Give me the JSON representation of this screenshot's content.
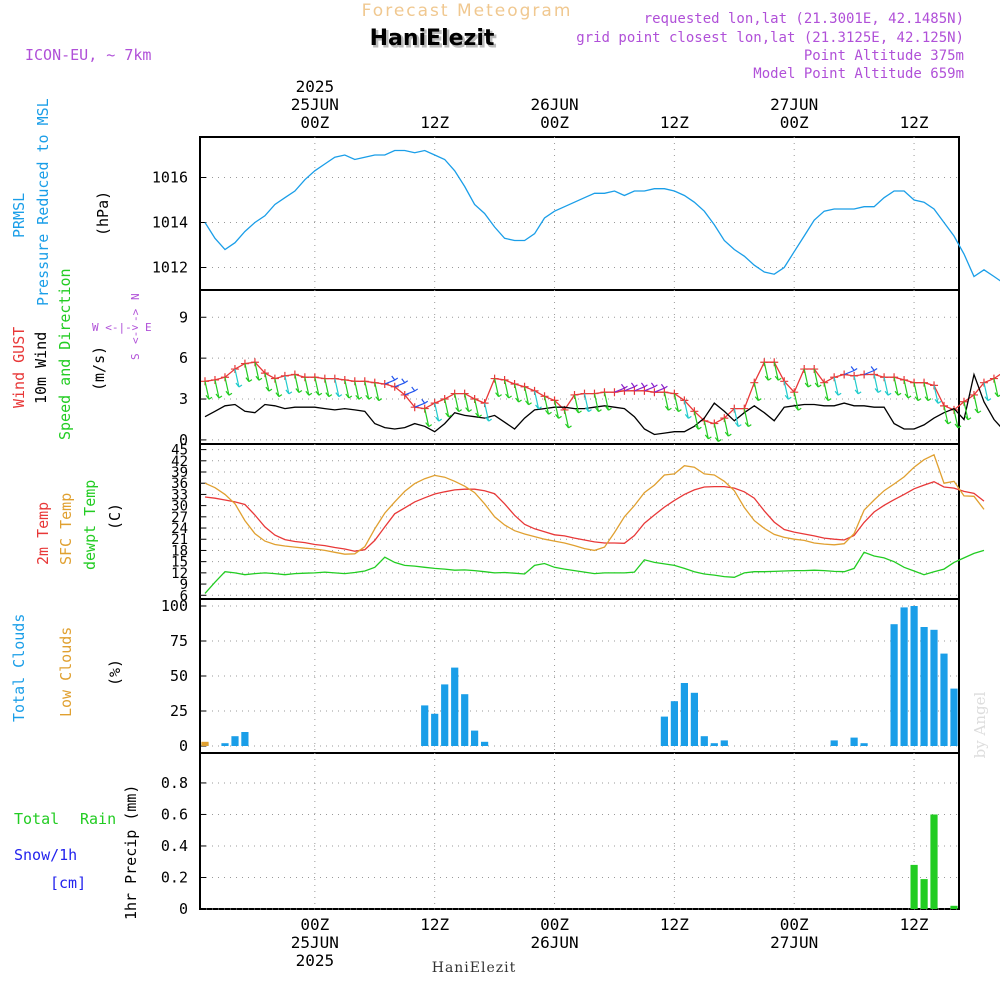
{
  "header": {
    "super_title": "Forecast Meteogram",
    "station": "HaniElezit",
    "model": "ICON-EU, ~ 7km",
    "requested": "requested lon,lat (21.3001E, 42.1485N)",
    "grid_point": "grid point closest lon,lat (21.3125E, 42.125N)",
    "point_alt": "Point Altitude 375m",
    "model_alt": "Model Point Altitude 659m"
  },
  "footer": {
    "station": "HaniElezit",
    "credit": "by Angel"
  },
  "time_axis": {
    "top_labels": [
      {
        "t": 18,
        "lines": [
          "2025",
          "25JUN",
          "00Z"
        ]
      },
      {
        "t": 30,
        "lines": [
          "12Z"
        ]
      },
      {
        "t": 42,
        "lines": [
          "26JUN",
          "00Z"
        ]
      },
      {
        "t": 54,
        "lines": [
          "12Z"
        ]
      },
      {
        "t": 66,
        "lines": [
          "27JUN",
          "00Z"
        ]
      },
      {
        "t": 78,
        "lines": [
          "12Z"
        ]
      }
    ],
    "bottom_labels": [
      {
        "t": 18,
        "lines": [
          "00Z",
          "25JUN",
          "2025"
        ]
      },
      {
        "t": 30,
        "lines": [
          "12Z"
        ]
      },
      {
        "t": 42,
        "lines": [
          "00Z",
          "26JUN"
        ]
      },
      {
        "t": 54,
        "lines": [
          "12Z"
        ]
      },
      {
        "t": 66,
        "lines": [
          "00Z",
          "27JUN"
        ]
      },
      {
        "t": 78,
        "lines": [
          "12Z"
        ]
      }
    ]
  },
  "colors": {
    "pressure": "#1a9ee8",
    "gust": "#e83838",
    "wind10": "#000000",
    "wind_dir": "#22cc22",
    "temp2m": "#e83838",
    "sfc": "#e0a030",
    "dewpt": "#22cc22",
    "clouds_total": "#1a9ee8",
    "clouds_low": "#e0a030",
    "rain": "#22cc22",
    "snow": "#2222ee",
    "title_orange": "#f0c890",
    "purple": "#b050d8"
  },
  "chart_data": [
    {
      "type": "line",
      "title": "PRMSL",
      "label_lines": [
        "PRMSL",
        "Pressure Reduced to MSL"
      ],
      "ylabel": "(hPa)",
      "ylim": [
        1011,
        1017.8
      ],
      "yticks": [
        1012,
        1014,
        1016
      ],
      "grid": true,
      "series": [
        {
          "name": "PRMSL",
          "x_start": 7,
          "x_step": 1,
          "values": [
            1014.0,
            1013.3,
            1012.8,
            1013.1,
            1013.6,
            1014.0,
            1014.3,
            1014.8,
            1015.1,
            1015.4,
            1015.9,
            1016.3,
            1016.6,
            1016.9,
            1017.0,
            1016.8,
            1016.9,
            1017.0,
            1017.0,
            1017.2,
            1017.2,
            1017.1,
            1017.2,
            1017.0,
            1016.8,
            1016.3,
            1015.6,
            1014.8,
            1014.4,
            1013.8,
            1013.3,
            1013.2,
            1013.2,
            1013.5,
            1014.2,
            1014.5,
            1014.7,
            1014.9,
            1015.1,
            1015.3,
            1015.3,
            1015.4,
            1015.2,
            1015.4,
            1015.4,
            1015.5,
            1015.5,
            1015.4,
            1015.2,
            1014.9,
            1014.5,
            1013.9,
            1013.2,
            1012.8,
            1012.5,
            1012.1,
            1011.8,
            1011.7,
            1012.0,
            1012.7,
            1013.4,
            1014.1,
            1014.5,
            1014.6,
            1014.6,
            1014.6,
            1014.7,
            1014.7,
            1015.1,
            1015.4,
            1015.4,
            1015.0,
            1014.9,
            1014.6,
            1014.0,
            1013.4,
            1012.6,
            1011.6,
            1011.9,
            1011.6,
            1011.3,
            1011.4,
            1011.5,
            1012.0
          ]
        }
      ]
    },
    {
      "type": "line",
      "title": "Wind",
      "label_lines": [
        "Wind GUST",
        "10m Wind",
        "Speed and Direction"
      ],
      "ylabel": "(m/s)",
      "compass": [
        "N",
        "W <-|-> E",
        "S"
      ],
      "ylim": [
        -0.3,
        11
      ],
      "yticks": [
        0,
        3,
        6,
        9
      ],
      "grid": true,
      "series": [
        {
          "name": "Wind GUST",
          "x_start": 7,
          "x_step": 1,
          "values": [
            4.3,
            4.4,
            4.6,
            5.2,
            5.6,
            5.7,
            4.9,
            4.5,
            4.7,
            4.8,
            4.6,
            4.6,
            4.5,
            4.5,
            4.4,
            4.3,
            4.3,
            4.2,
            4.1,
            3.9,
            3.3,
            2.4,
            2.3,
            2.7,
            3.0,
            3.4,
            3.4,
            3.0,
            2.7,
            4.5,
            4.4,
            4.1,
            3.9,
            3.6,
            3.2,
            2.9,
            2.2,
            3.3,
            3.4,
            3.4,
            3.5,
            3.5,
            3.6,
            3.6,
            3.6,
            3.5,
            3.5,
            3.4,
            2.9,
            2.1,
            1.4,
            1.2,
            1.6,
            2.3,
            2.3,
            4.2,
            5.7,
            5.7,
            4.3,
            3.5,
            5.2,
            5.2,
            4.2,
            4.6,
            4.8,
            4.7,
            4.8,
            4.8,
            4.6,
            4.6,
            4.4,
            4.2,
            4.2,
            4.0,
            2.5,
            2.2,
            2.8,
            3.3,
            4.2,
            4.5,
            5.0,
            5.3,
            10.0,
            9.8,
            5.4,
            4.2,
            2.9,
            3.1
          ]
        },
        {
          "name": "10m Wind",
          "x_start": 7,
          "x_step": 1,
          "values": [
            1.7,
            2.1,
            2.5,
            2.6,
            2.1,
            2.0,
            2.6,
            2.5,
            2.3,
            2.4,
            2.4,
            2.4,
            2.3,
            2.2,
            2.3,
            2.2,
            2.1,
            1.2,
            0.9,
            0.8,
            0.9,
            1.2,
            1.0,
            0.6,
            1.2,
            2.0,
            1.8,
            1.7,
            1.6,
            1.8,
            1.3,
            0.8,
            1.6,
            2.2,
            2.3,
            2.4,
            2.4,
            2.3,
            2.3,
            2.4,
            2.5,
            2.4,
            2.3,
            1.7,
            0.8,
            0.4,
            0.5,
            0.6,
            0.6,
            1.0,
            1.6,
            2.7,
            2.1,
            1.4,
            2.0,
            2.5,
            2.0,
            1.4,
            2.4,
            2.5,
            2.6,
            2.6,
            2.5,
            2.5,
            2.7,
            2.5,
            2.5,
            2.4,
            2.4,
            1.2,
            0.8,
            0.8,
            1.1,
            1.6,
            2.0,
            2.3,
            1.5,
            4.8,
            2.8,
            1.5,
            0.7,
            1.6
          ]
        }
      ]
    },
    {
      "type": "line",
      "title": "Temperature",
      "label_lines": [
        "2m Temp",
        "SFC Temp",
        "dewpt Temp"
      ],
      "ylabel": "(C)",
      "ylim": [
        5,
        46.5
      ],
      "yticks": [
        6,
        9,
        12,
        15,
        18,
        21,
        24,
        27,
        30,
        33,
        36,
        39,
        42,
        45
      ],
      "grid": true,
      "series": [
        {
          "name": "2m Temp",
          "x_start": 7,
          "x_step": 1,
          "values": [
            32.3,
            32.0,
            31.5,
            31.0,
            30.3,
            27.5,
            24.3,
            22.1,
            20.9,
            20.4,
            20.1,
            19.6,
            19.3,
            18.8,
            18.4,
            17.8,
            18.2,
            20.7,
            24.3,
            27.8,
            29.4,
            31.0,
            32.1,
            33.1,
            33.7,
            34.2,
            34.4,
            34.4,
            34.0,
            33.2,
            30.5,
            27.4,
            25.0,
            23.8,
            23.0,
            22.2,
            21.9,
            21.3,
            20.8,
            20.3,
            20.0,
            20.0,
            19.9,
            22.0,
            25.3,
            27.5,
            29.6,
            31.4,
            33.0,
            34.2,
            35.0,
            35.1,
            35.1,
            34.7,
            33.7,
            32.0,
            28.6,
            25.6,
            23.6,
            22.9,
            22.4,
            21.9,
            21.3,
            21.0,
            20.8,
            22.0,
            25.5,
            28.3,
            30.1,
            31.6,
            33.0,
            34.5,
            35.5,
            36.4,
            35.0,
            34.7,
            33.8,
            33.3,
            31.2
          ]
        },
        {
          "name": "SFC Temp",
          "x_start": 7,
          "x_step": 1,
          "values": [
            36.0,
            34.8,
            33.0,
            30.5,
            26.0,
            22.5,
            20.5,
            19.6,
            19.2,
            18.9,
            18.6,
            18.4,
            18.0,
            17.5,
            17.0,
            17.1,
            19.0,
            23.8,
            28.0,
            31.0,
            33.8,
            35.9,
            37.2,
            38.1,
            37.6,
            36.5,
            35.2,
            33.5,
            30.5,
            27.0,
            24.8,
            23.3,
            22.4,
            21.7,
            21.0,
            20.5,
            20.0,
            19.3,
            18.5,
            18.0,
            18.9,
            22.8,
            27.0,
            30.0,
            33.5,
            35.5,
            38.2,
            38.5,
            40.7,
            40.3,
            38.5,
            38.2,
            36.5,
            34.0,
            29.5,
            26.0,
            23.9,
            22.3,
            21.5,
            21.0,
            20.7,
            20.0,
            19.7,
            19.5,
            19.8,
            22.5,
            28.8,
            31.5,
            34.0,
            35.8,
            37.7,
            40.3,
            42.3,
            43.6,
            36.0,
            36.5,
            32.6,
            32.5,
            29.0
          ]
        },
        {
          "name": "dewpt Temp",
          "x_start": 7,
          "x_step": 1,
          "values": [
            6.5,
            9.5,
            12.3,
            12.0,
            11.5,
            11.8,
            12.0,
            11.8,
            11.5,
            11.8,
            11.9,
            12.0,
            12.2,
            12.0,
            11.8,
            12.1,
            12.5,
            13.5,
            16.2,
            14.8,
            14.0,
            13.8,
            13.5,
            13.2,
            13.0,
            12.7,
            12.8,
            12.6,
            12.3,
            12.0,
            12.1,
            11.9,
            11.7,
            14.0,
            14.5,
            13.5,
            13.0,
            12.6,
            12.2,
            11.8,
            12.0,
            12.0,
            12.0,
            12.2,
            15.5,
            14.8,
            14.4,
            14.0,
            13.2,
            12.3,
            11.7,
            11.4,
            11.0,
            10.8,
            12.0,
            12.3,
            12.3,
            12.4,
            12.5,
            12.6,
            12.6,
            12.7,
            12.6,
            12.4,
            12.3,
            13.2,
            17.5,
            16.5,
            16.0,
            15.0,
            13.5,
            12.5,
            11.5,
            12.3,
            13.0,
            14.8,
            16.0,
            17.2,
            18.0
          ]
        }
      ]
    },
    {
      "type": "bar",
      "title": "Clouds",
      "label_lines": [
        "Total Clouds",
        "Low Clouds"
      ],
      "ylabel": "(%)",
      "ylim": [
        -5,
        105
      ],
      "yticks": [
        0,
        25,
        50,
        75,
        100
      ],
      "grid": true,
      "series": [
        {
          "name": "Total Clouds",
          "points": [
            [
              7,
              2
            ],
            [
              9,
              2
            ],
            [
              10,
              7
            ],
            [
              11,
              10
            ],
            [
              29,
              29
            ],
            [
              30,
              23
            ],
            [
              31,
              44
            ],
            [
              32,
              56
            ],
            [
              33,
              37
            ],
            [
              34,
              11
            ],
            [
              35,
              3
            ],
            [
              53,
              21
            ],
            [
              54,
              32
            ],
            [
              55,
              45
            ],
            [
              56,
              38
            ],
            [
              57,
              7
            ],
            [
              58,
              2
            ],
            [
              59,
              4
            ],
            [
              70,
              4
            ],
            [
              72,
              6
            ],
            [
              73,
              2
            ],
            [
              76,
              87
            ],
            [
              77,
              99
            ],
            [
              78,
              100
            ],
            [
              79,
              85
            ],
            [
              80,
              83
            ],
            [
              81,
              66
            ],
            [
              82,
              41
            ]
          ]
        },
        {
          "name": "Low Clouds",
          "points": [
            [
              7,
              3
            ]
          ]
        }
      ]
    },
    {
      "type": "bar",
      "title": "Precipitation",
      "label_lines": [
        "Total",
        "Rain",
        "Snow/1h",
        "[cm]"
      ],
      "ylabel": "1hr Precip (mm)",
      "ylim": [
        0,
        0.99
      ],
      "yticks": [
        0,
        0.2,
        0.4,
        0.6,
        0.8
      ],
      "grid": true,
      "series": [
        {
          "name": "Rain",
          "points": [
            [
              78,
              0.28
            ],
            [
              79,
              0.19
            ],
            [
              80,
              0.6
            ],
            [
              82,
              0.02
            ]
          ]
        }
      ]
    }
  ]
}
